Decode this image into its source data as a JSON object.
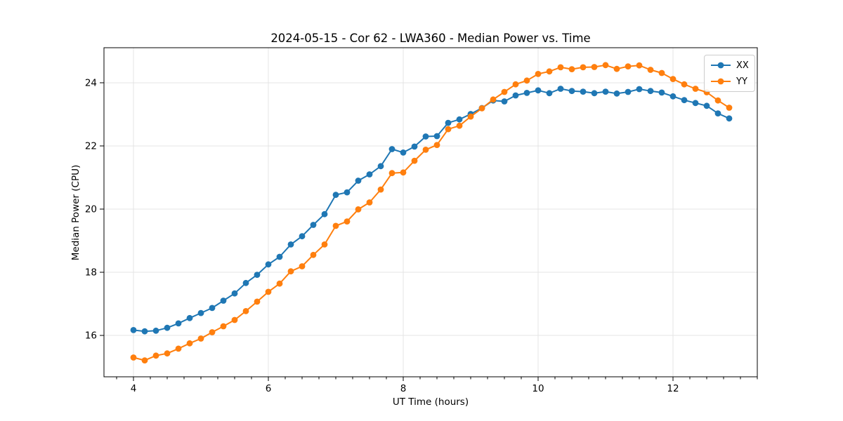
{
  "chart_data": {
    "type": "line",
    "title": "2024-05-15 - Cor 62 - LWA360 - Median Power vs. Time",
    "xlabel": "UT Time (hours)",
    "ylabel": "Median Power (CPU)",
    "xlim": [
      3.5625,
      13.25
    ],
    "ylim": [
      14.69,
      25.11
    ],
    "xticks": [
      4,
      6,
      8,
      10,
      12
    ],
    "yticks": [
      16,
      18,
      20,
      22,
      24
    ],
    "minor_xtick_step": 0.25,
    "grid": true,
    "legend_position": "upper right",
    "x": [
      4.0,
      4.167,
      4.333,
      4.5,
      4.667,
      4.833,
      5.0,
      5.167,
      5.333,
      5.5,
      5.667,
      5.833,
      6.0,
      6.167,
      6.333,
      6.5,
      6.667,
      6.833,
      7.0,
      7.167,
      7.333,
      7.5,
      7.667,
      7.833,
      8.0,
      8.167,
      8.333,
      8.5,
      8.667,
      8.833,
      9.0,
      9.167,
      9.333,
      9.5,
      9.667,
      9.833,
      10.0,
      10.167,
      10.333,
      10.5,
      10.667,
      10.833,
      11.0,
      11.167,
      11.333,
      11.5,
      11.667,
      11.833,
      12.0,
      12.167,
      12.333,
      12.5,
      12.667,
      12.833
    ],
    "series": [
      {
        "name": "XX",
        "color": "#1f77b4",
        "marker": "circle",
        "values": [
          16.17,
          16.13,
          16.15,
          16.24,
          16.38,
          16.55,
          16.71,
          16.87,
          17.1,
          17.33,
          17.66,
          17.92,
          18.25,
          18.49,
          18.88,
          19.14,
          19.5,
          19.84,
          20.45,
          20.53,
          20.9,
          21.1,
          21.36,
          21.9,
          21.79,
          21.98,
          22.3,
          22.31,
          22.73,
          22.84,
          23.01,
          23.2,
          23.44,
          23.41,
          23.6,
          23.68,
          23.76,
          23.67,
          23.81,
          23.74,
          23.72,
          23.67,
          23.72,
          23.66,
          23.71,
          23.8,
          23.74,
          23.69,
          23.57,
          23.45,
          23.36,
          23.27,
          23.03,
          22.87
        ]
      },
      {
        "name": "YY",
        "color": "#ff7f0e",
        "marker": "circle",
        "values": [
          15.3,
          15.21,
          15.36,
          15.43,
          15.58,
          15.75,
          15.9,
          16.1,
          16.29,
          16.49,
          16.77,
          17.07,
          17.38,
          17.64,
          18.03,
          18.19,
          18.55,
          18.88,
          19.47,
          19.61,
          19.99,
          20.21,
          20.62,
          21.14,
          21.16,
          21.53,
          21.88,
          22.03,
          22.53,
          22.64,
          22.93,
          23.19,
          23.47,
          23.71,
          23.95,
          24.07,
          24.28,
          24.36,
          24.49,
          24.43,
          24.49,
          24.5,
          24.56,
          24.44,
          24.52,
          24.55,
          24.41,
          24.31,
          24.12,
          23.95,
          23.81,
          23.7,
          23.44,
          23.21
        ]
      }
    ]
  },
  "colors": {
    "grid": "#e4e4e4",
    "spine": "#000000",
    "tick_text": "#000000",
    "legend_border": "#cccccc"
  }
}
